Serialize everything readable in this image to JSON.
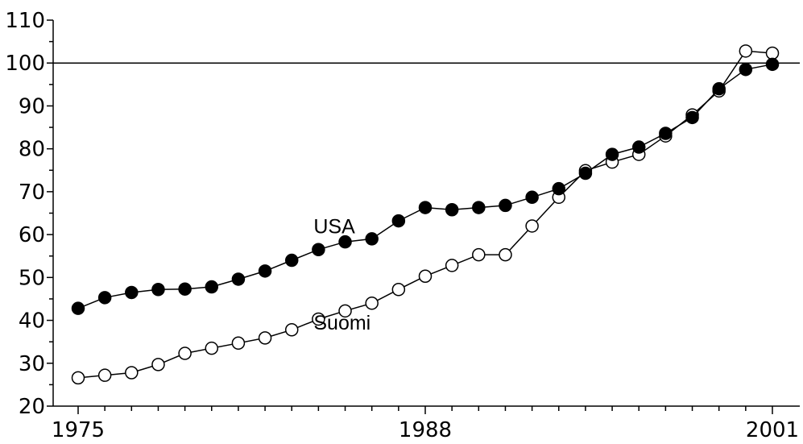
{
  "chart_data": {
    "type": "line",
    "title": "",
    "xlabel": "",
    "ylabel": "",
    "x": [
      1975,
      1976,
      1977,
      1978,
      1979,
      1980,
      1981,
      1982,
      1983,
      1984,
      1985,
      1986,
      1987,
      1988,
      1989,
      1990,
      1991,
      1992,
      1993,
      1994,
      1995,
      1996,
      1997,
      1998,
      1999,
      2000,
      2001
    ],
    "xlim": [
      1974,
      2002
    ],
    "ylim": [
      20,
      110
    ],
    "x_tick_labels": [
      1975,
      1988,
      2001
    ],
    "y_tick_labels": [
      20,
      30,
      40,
      50,
      60,
      70,
      80,
      90,
      100,
      110
    ],
    "reference_line_y": 100,
    "series": [
      {
        "name": "USA",
        "marker": "filled-circle",
        "label_at": [
          1984,
          62
        ],
        "values": [
          42.8,
          45.3,
          46.5,
          47.2,
          47.3,
          47.8,
          49.6,
          51.5,
          54.0,
          56.5,
          58.3,
          59.0,
          63.2,
          66.3,
          65.8,
          66.3,
          66.8,
          68.7,
          70.7,
          74.3,
          78.7,
          80.4,
          83.6,
          87.3,
          94.0,
          98.5,
          99.7
        ]
      },
      {
        "name": "Suomi",
        "marker": "open-circle",
        "label_at": [
          1984,
          39.5
        ],
        "values": [
          26.6,
          27.2,
          27.8,
          29.7,
          32.3,
          33.5,
          34.7,
          35.9,
          37.8,
          40.3,
          42.2,
          44.0,
          47.2,
          50.3,
          52.8,
          55.3,
          55.3,
          62.0,
          68.7,
          74.9,
          76.9,
          78.7,
          83.0,
          87.9,
          93.5,
          102.8,
          102.3
        ]
      }
    ]
  }
}
